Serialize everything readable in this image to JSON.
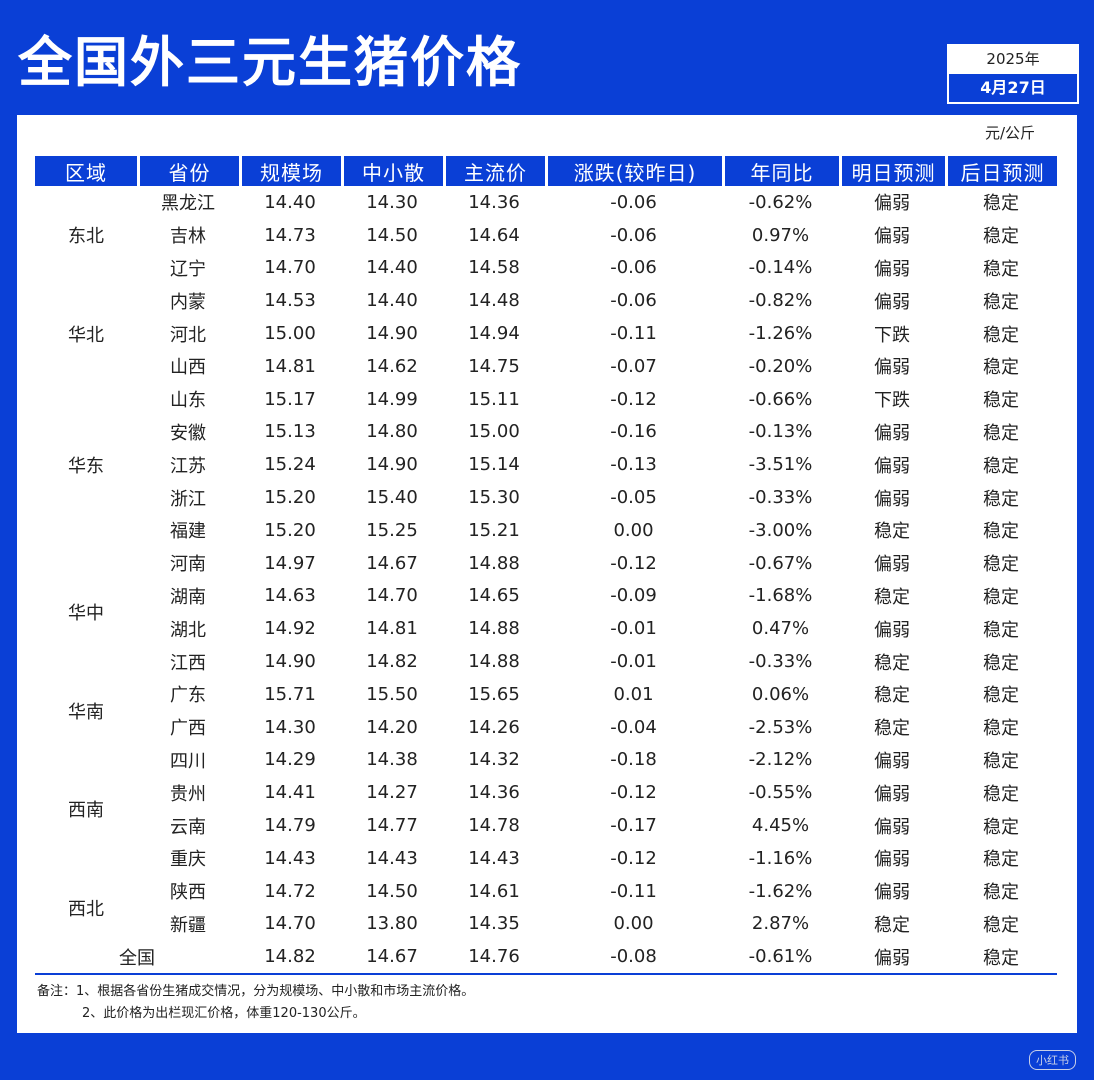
{
  "title": "全国外三元生猪价格",
  "date": {
    "year": "2025年",
    "monthday": "4月27日"
  },
  "unit": "元/公斤",
  "headers": [
    "区域",
    "省份",
    "规模场",
    "中小散",
    "主流价",
    "涨跌(较昨日)",
    "年同比",
    "明日预测",
    "后日预测"
  ],
  "rows": [
    {
      "region": "东北",
      "region_span": 3,
      "province": "黑龙江",
      "scale": "14.40",
      "small": "14.30",
      "main": "14.36",
      "change": "-0.06",
      "change_color": "green",
      "yoy": "-0.62%",
      "yoy_color": "green",
      "tomorrow": "偏弱",
      "tomorrow_color": "green",
      "after": "稳定"
    },
    {
      "province": "吉林",
      "scale": "14.73",
      "small": "14.50",
      "main": "14.64",
      "change": "-0.06",
      "change_color": "green",
      "yoy": "0.97%",
      "yoy_color": "red",
      "tomorrow": "偏弱",
      "tomorrow_color": "green",
      "after": "稳定"
    },
    {
      "province": "辽宁",
      "scale": "14.70",
      "small": "14.40",
      "main": "14.58",
      "change": "-0.06",
      "change_color": "green",
      "yoy": "-0.14%",
      "yoy_color": "green",
      "tomorrow": "偏弱",
      "tomorrow_color": "green",
      "after": "稳定"
    },
    {
      "region": "华北",
      "region_span": 3,
      "province": "内蒙",
      "scale": "14.53",
      "small": "14.40",
      "main": "14.48",
      "change": "-0.06",
      "change_color": "green",
      "yoy": "-0.82%",
      "yoy_color": "green",
      "tomorrow": "偏弱",
      "tomorrow_color": "green",
      "after": "稳定"
    },
    {
      "province": "河北",
      "scale": "15.00",
      "small": "14.90",
      "main": "14.94",
      "change": "-0.11",
      "change_color": "green",
      "yoy": "-1.26%",
      "yoy_color": "green",
      "tomorrow": "下跌",
      "tomorrow_color": "green",
      "after": "稳定"
    },
    {
      "province": "山西",
      "scale": "14.81",
      "small": "14.62",
      "main": "14.75",
      "change": "-0.07",
      "change_color": "green",
      "yoy": "-0.20%",
      "yoy_color": "green",
      "tomorrow": "偏弱",
      "tomorrow_color": "green",
      "after": "稳定"
    },
    {
      "region": "华东",
      "region_span": 5,
      "province": "山东",
      "scale": "15.17",
      "small": "14.99",
      "main": "15.11",
      "change": "-0.12",
      "change_color": "green",
      "yoy": "-0.66%",
      "yoy_color": "green",
      "tomorrow": "下跌",
      "tomorrow_color": "green",
      "after": "稳定"
    },
    {
      "province": "安徽",
      "scale": "15.13",
      "small": "14.80",
      "main": "15.00",
      "change": "-0.16",
      "change_color": "green",
      "yoy": "-0.13%",
      "yoy_color": "green",
      "tomorrow": "偏弱",
      "tomorrow_color": "green",
      "after": "稳定"
    },
    {
      "province": "江苏",
      "scale": "15.24",
      "small": "14.90",
      "main": "15.14",
      "change": "-0.13",
      "change_color": "green",
      "yoy": "-3.51%",
      "yoy_color": "green",
      "tomorrow": "偏弱",
      "tomorrow_color": "green",
      "after": "稳定"
    },
    {
      "province": "浙江",
      "scale": "15.20",
      "small": "15.40",
      "main": "15.30",
      "change": "-0.05",
      "change_color": "green",
      "yoy": "-0.33%",
      "yoy_color": "green",
      "tomorrow": "偏弱",
      "tomorrow_color": "green",
      "after": "稳定"
    },
    {
      "province": "福建",
      "scale": "15.20",
      "small": "15.25",
      "main": "15.21",
      "change": "0.00",
      "change_color": "black",
      "yoy": "-3.00%",
      "yoy_color": "green",
      "tomorrow": "稳定",
      "tomorrow_color": "black",
      "after": "稳定"
    },
    {
      "region": "华中",
      "region_span": 4,
      "province": "河南",
      "scale": "14.97",
      "small": "14.67",
      "main": "14.88",
      "change": "-0.12",
      "change_color": "green",
      "yoy": "-0.67%",
      "yoy_color": "green",
      "tomorrow": "偏弱",
      "tomorrow_color": "green",
      "after": "稳定"
    },
    {
      "province": "湖南",
      "scale": "14.63",
      "small": "14.70",
      "main": "14.65",
      "change": "-0.09",
      "change_color": "green",
      "yoy": "-1.68%",
      "yoy_color": "green",
      "tomorrow": "稳定",
      "tomorrow_color": "black",
      "after": "稳定"
    },
    {
      "province": "湖北",
      "scale": "14.92",
      "small": "14.81",
      "main": "14.88",
      "change": "-0.01",
      "change_color": "green",
      "yoy": "0.47%",
      "yoy_color": "red",
      "tomorrow": "偏弱",
      "tomorrow_color": "green",
      "after": "稳定"
    },
    {
      "province": "江西",
      "scale": "14.90",
      "small": "14.82",
      "main": "14.88",
      "change": "-0.01",
      "change_color": "green",
      "yoy": "-0.33%",
      "yoy_color": "green",
      "tomorrow": "稳定",
      "tomorrow_color": "black",
      "after": "稳定"
    },
    {
      "region": "华南",
      "region_span": 2,
      "province": "广东",
      "scale": "15.71",
      "small": "15.50",
      "main": "15.65",
      "change": "0.01",
      "change_color": "red",
      "yoy": "0.06%",
      "yoy_color": "red",
      "tomorrow": "稳定",
      "tomorrow_color": "black",
      "after": "稳定"
    },
    {
      "province": "广西",
      "scale": "14.30",
      "small": "14.20",
      "main": "14.26",
      "change": "-0.04",
      "change_color": "green",
      "yoy": "-2.53%",
      "yoy_color": "green",
      "tomorrow": "稳定",
      "tomorrow_color": "black",
      "after": "稳定"
    },
    {
      "region": "西南",
      "region_span": 4,
      "province": "四川",
      "scale": "14.29",
      "small": "14.38",
      "main": "14.32",
      "change": "-0.18",
      "change_color": "green",
      "yoy": "-2.12%",
      "yoy_color": "green",
      "tomorrow": "偏弱",
      "tomorrow_color": "green",
      "after": "稳定"
    },
    {
      "province": "贵州",
      "scale": "14.41",
      "small": "14.27",
      "main": "14.36",
      "change": "-0.12",
      "change_color": "green",
      "yoy": "-0.55%",
      "yoy_color": "green",
      "tomorrow": "偏弱",
      "tomorrow_color": "green",
      "after": "稳定"
    },
    {
      "province": "云南",
      "scale": "14.79",
      "small": "14.77",
      "main": "14.78",
      "change": "-0.17",
      "change_color": "green",
      "yoy": "4.45%",
      "yoy_color": "red",
      "tomorrow": "偏弱",
      "tomorrow_color": "green",
      "after": "稳定"
    },
    {
      "province": "重庆",
      "scale": "14.43",
      "small": "14.43",
      "main": "14.43",
      "change": "-0.12",
      "change_color": "green",
      "yoy": "-1.16%",
      "yoy_color": "green",
      "tomorrow": "偏弱",
      "tomorrow_color": "green",
      "after": "稳定"
    },
    {
      "region": "西北",
      "region_span": 2,
      "province": "陕西",
      "scale": "14.72",
      "small": "14.50",
      "main": "14.61",
      "change": "-0.11",
      "change_color": "green",
      "yoy": "-1.62%",
      "yoy_color": "green",
      "tomorrow": "偏弱",
      "tomorrow_color": "green",
      "after": "稳定"
    },
    {
      "province": "新疆",
      "scale": "14.70",
      "small": "13.80",
      "main": "14.35",
      "change": "0.00",
      "change_color": "black",
      "yoy": "2.87%",
      "yoy_color": "red",
      "tomorrow": "稳定",
      "tomorrow_color": "black",
      "after": "稳定"
    }
  ],
  "national": {
    "label": "全国",
    "scale": "14.82",
    "small": "14.67",
    "main": "14.76",
    "change": "-0.08",
    "change_color": "green",
    "yoy": "-0.61%",
    "yoy_color": "green",
    "tomorrow": "偏弱",
    "tomorrow_color": "green",
    "after": "稳定"
  },
  "notes": [
    "备注：1、根据各省份生猪成交情况，分为规模场、中小散和市场主流价格。",
    "2、此价格为出栏现汇价格，体重120-130公斤。"
  ],
  "colors": {
    "accent": "#0a3fd6",
    "down": "#1bb36a",
    "up": "#e0204a"
  }
}
